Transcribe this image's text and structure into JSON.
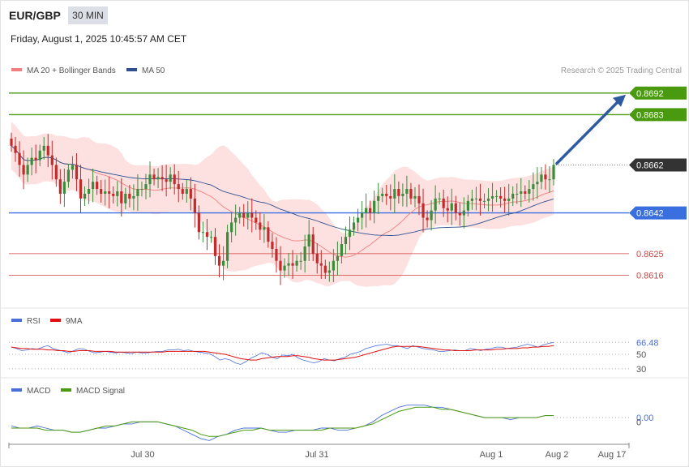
{
  "header": {
    "symbol": "EUR/GBP",
    "timeframe": "30 MIN",
    "datetime": "Friday, August 1, 2025 10:45:57 AM CET"
  },
  "legend": {
    "ma20": "MA 20 + Bollinger Bands",
    "ma50": "MA 50",
    "rsi": "RSI",
    "rsi_ma": "9MA",
    "macd": "MACD",
    "macd_signal": "MACD Signal",
    "credit": "Research © 2025 Trading Central"
  },
  "colors": {
    "ma20": "#f08080",
    "ma50": "#2f4f8f",
    "band_fill": "#fde0e0",
    "candle_up": "#3c8c3c",
    "candle_down": "#c42a2a",
    "resistance": "#4a9a10",
    "support_blue": "#3a6fe0",
    "support_red": "#d04040",
    "current": "#333333",
    "arrow": "#2d5aa0",
    "rsi": "#4a6fd8",
    "rsi_ma": "#e01010",
    "macd": "#4a6fd8",
    "macd_signal": "#4a9a10"
  },
  "chart_data": [
    {
      "type": "line",
      "panel": "price",
      "x_labels": [
        "Jul 30",
        "Jul 31",
        "Aug 1",
        "Aug 2",
        "Aug 17"
      ],
      "ylim": [
        0.8605,
        0.8697
      ],
      "levels": [
        {
          "value": 0.8692,
          "label": "0.8692",
          "kind": "resistance"
        },
        {
          "value": 0.8683,
          "label": "0.8683",
          "kind": "resistance"
        },
        {
          "value": 0.8662,
          "label": "0.8662",
          "kind": "current"
        },
        {
          "value": 0.8642,
          "label": "0.8642",
          "kind": "support_blue"
        },
        {
          "value": 0.8625,
          "label": "0.8625",
          "kind": "support_red"
        },
        {
          "value": 0.8616,
          "label": "0.8616",
          "kind": "support_red"
        }
      ],
      "close": [
        0.867,
        0.8667,
        0.8662,
        0.8658,
        0.8662,
        0.8665,
        0.8664,
        0.8668,
        0.867,
        0.8666,
        0.8662,
        0.8656,
        0.865,
        0.8655,
        0.866,
        0.8662,
        0.8656,
        0.8648,
        0.865,
        0.8652,
        0.8655,
        0.8652,
        0.865,
        0.8651,
        0.865,
        0.8649,
        0.8651,
        0.8646,
        0.865,
        0.8648,
        0.8649,
        0.8652,
        0.8652,
        0.8654,
        0.8658,
        0.8656,
        0.8657,
        0.8656,
        0.8655,
        0.8658,
        0.8654,
        0.8652,
        0.865,
        0.8652,
        0.8648,
        0.8642,
        0.8634,
        0.8634,
        0.8632,
        0.8632,
        0.8624,
        0.862,
        0.8622,
        0.8634,
        0.8638,
        0.864,
        0.8642,
        0.864,
        0.8642,
        0.864,
        0.8638,
        0.8635,
        0.8636,
        0.863,
        0.8627,
        0.8622,
        0.8618,
        0.862,
        0.8621,
        0.862,
        0.8622,
        0.8622,
        0.8628,
        0.8633,
        0.8625,
        0.8621,
        0.862,
        0.8617,
        0.8618,
        0.8622,
        0.8624,
        0.8629,
        0.8632,
        0.8635,
        0.8638,
        0.864,
        0.8642,
        0.8644,
        0.8642,
        0.8647,
        0.8649,
        0.865,
        0.8649,
        0.8648,
        0.8652,
        0.8649,
        0.865,
        0.8652,
        0.8648,
        0.8649,
        0.8646,
        0.864,
        0.8639,
        0.8643,
        0.8648,
        0.8648,
        0.8644,
        0.8643,
        0.8646,
        0.8642,
        0.8641,
        0.8643,
        0.8647,
        0.8648,
        0.8648,
        0.8647,
        0.8647,
        0.8648,
        0.8649,
        0.8649,
        0.8648,
        0.8647,
        0.8648,
        0.865,
        0.865,
        0.8651,
        0.865,
        0.8652,
        0.8654,
        0.8655,
        0.8658,
        0.8656,
        0.8656,
        0.8662
      ]
    },
    {
      "type": "line",
      "panel": "rsi",
      "ylim": [
        22,
        78
      ],
      "ticks": [
        {
          "value": 66.48,
          "label": "66.48"
        },
        {
          "value": 50,
          "label": "50"
        },
        {
          "value": 30,
          "label": "30"
        }
      ],
      "rsi": [
        60,
        58,
        55,
        56,
        58,
        57,
        60,
        62,
        58,
        56,
        54,
        52,
        55,
        58,
        57,
        54,
        52,
        53,
        54,
        53,
        52,
        53,
        52,
        51,
        53,
        52,
        52,
        53,
        54,
        54,
        56,
        56,
        57,
        55,
        56,
        54,
        53,
        52,
        51,
        47,
        42,
        44,
        42,
        38,
        36,
        40,
        45,
        48,
        52,
        50,
        46,
        44,
        49,
        48,
        50,
        45,
        42,
        40,
        38,
        40,
        44,
        42,
        41,
        44,
        46,
        50,
        52,
        54,
        58,
        60,
        62,
        63,
        64,
        62,
        62,
        60,
        58,
        62,
        60,
        58,
        57,
        56,
        54,
        54,
        55,
        56,
        55,
        55,
        58,
        57,
        55,
        57,
        58,
        60,
        60,
        58,
        59,
        60,
        62,
        64,
        62,
        60,
        63,
        65,
        66.48
      ],
      "ma9": [
        60,
        59,
        58,
        58,
        57,
        57,
        57,
        56,
        56,
        55,
        55,
        54,
        54,
        55,
        55,
        55,
        54,
        54,
        54,
        54,
        53,
        53,
        53,
        53,
        53,
        53,
        53,
        53,
        53,
        53,
        54,
        54,
        54,
        54,
        54,
        54,
        54,
        54,
        53,
        52,
        51,
        50,
        48,
        46,
        44,
        43,
        42,
        42,
        44,
        45,
        46,
        47,
        47,
        47,
        48,
        48,
        47,
        46,
        44,
        43,
        42,
        42,
        42,
        43,
        44,
        45,
        46,
        48,
        50,
        52,
        54,
        56,
        58,
        60,
        61,
        61,
        61,
        61,
        61,
        60,
        59,
        58,
        57,
        56,
        56,
        55,
        55,
        55,
        55,
        56,
        56,
        56,
        56,
        57,
        57,
        58,
        58,
        58,
        59,
        59,
        60,
        60,
        61,
        61,
        62
      ]
    },
    {
      "type": "line",
      "panel": "macd",
      "ylim": [
        -0.0012,
        0.0009
      ],
      "ticks": [
        {
          "value": 0.0,
          "label": "0.00"
        },
        {
          "value": -0.0002,
          "label": "0"
        }
      ],
      "macd": [
        -0.0004,
        -0.0005,
        -0.0005,
        -0.0004,
        -0.0005,
        -0.0006,
        -0.0006,
        -0.0007,
        -0.0007,
        -0.0006,
        -0.0005,
        -0.0005,
        -0.0004,
        -0.0003,
        -0.0003,
        -0.0002,
        -0.0002,
        -0.0002,
        -0.0003,
        -0.0004,
        -0.0006,
        -0.0008,
        -0.001,
        -0.0011,
        -0.0009,
        -0.0008,
        -0.0006,
        -0.0005,
        -0.0005,
        -0.0005,
        -0.0006,
        -0.0007,
        -0.0007,
        -0.0006,
        -0.0006,
        -0.0006,
        -0.0005,
        -0.0005,
        -0.0006,
        -0.0006,
        -0.0005,
        -0.0004,
        -0.0002,
        0.0001,
        0.0003,
        0.0005,
        0.0006,
        0.0006,
        0.0006,
        0.0005,
        0.0005,
        0.0004,
        0.0003,
        0.0002,
        0.0001,
        0.0,
        0.0,
        0.0,
        -0.0001,
        0.0,
        0.0,
        0.0,
        0.0001,
        0.0001
      ],
      "signal": [
        -0.0005,
        -0.0005,
        -0.0005,
        -0.0005,
        -0.0006,
        -0.0006,
        -0.0006,
        -0.0007,
        -0.0007,
        -0.0006,
        -0.0005,
        -0.0004,
        -0.0004,
        -0.0003,
        -0.0002,
        -0.0002,
        -0.0002,
        -0.0002,
        -0.0003,
        -0.0004,
        -0.0005,
        -0.0006,
        -0.0008,
        -0.0009,
        -0.0009,
        -0.0008,
        -0.0007,
        -0.0006,
        -0.0006,
        -0.0005,
        -0.0006,
        -0.0006,
        -0.0006,
        -0.0006,
        -0.0006,
        -0.0006,
        -0.0006,
        -0.0005,
        -0.0005,
        -0.0005,
        -0.0005,
        -0.0004,
        -0.0003,
        -0.0001,
        0.0001,
        0.0003,
        0.0004,
        0.0005,
        0.0005,
        0.0005,
        0.0004,
        0.0004,
        0.0003,
        0.0002,
        0.0001,
        0.0,
        0.0,
        0.0,
        0.0,
        0.0,
        0.0,
        0.0,
        0.0001,
        0.0001
      ]
    }
  ]
}
